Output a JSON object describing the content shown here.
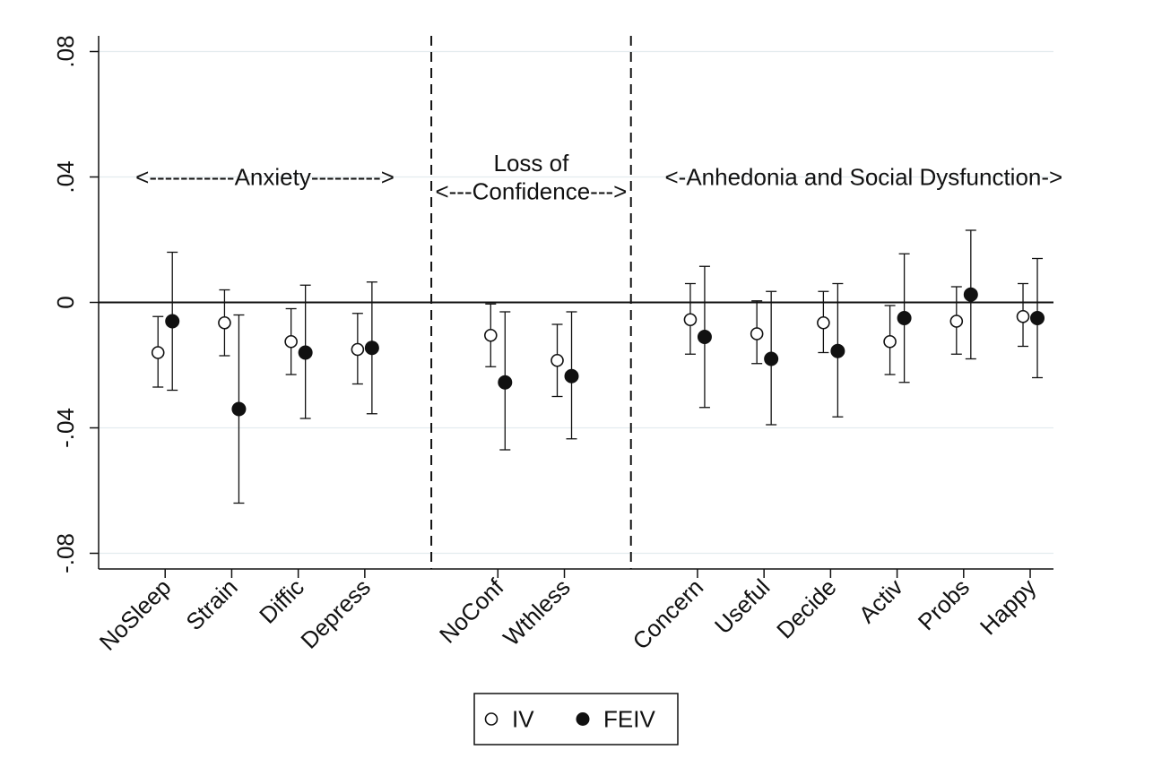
{
  "chart_data": {
    "type": "scatter",
    "title": "",
    "xlabel": "",
    "ylabel": "",
    "ylim": [
      -0.085,
      0.085
    ],
    "y_ticks": [
      {
        "value": 0.08,
        "label": ".08"
      },
      {
        "value": 0.04,
        "label": ".04"
      },
      {
        "value": 0,
        "label": "0"
      },
      {
        "value": -0.04,
        "label": "-.04"
      },
      {
        "value": -0.08,
        "label": "-.08"
      }
    ],
    "categories": [
      "NoSleep",
      "Strain",
      "Diffic",
      "Depress",
      "NoConf",
      "Wthless",
      "Concern",
      "Useful",
      "Decide",
      "Activ",
      "Probs",
      "Happy"
    ],
    "category_positions": [
      1,
      2,
      3,
      4,
      6,
      7,
      9,
      10,
      11,
      12,
      13,
      14
    ],
    "x_range": [
      0.0,
      14.35
    ],
    "separators": [
      5,
      8
    ],
    "reference_line": 0,
    "grid": true,
    "groups": [
      {
        "label": "<-----------Anxiety--------->"
      },
      {
        "label_line1": "Loss of",
        "label_line2": "<---Confidence--->"
      },
      {
        "label": "<-Anhedonia and Social Dysfunction->"
      }
    ],
    "series": [
      {
        "name": "IV",
        "marker": "hollow-circle",
        "values": [
          -0.016,
          -0.0065,
          -0.0125,
          -0.015,
          -0.0105,
          -0.0185,
          -0.0055,
          -0.01,
          -0.0065,
          -0.0125,
          -0.006,
          -0.0045
        ],
        "ci_low": [
          -0.027,
          -0.017,
          -0.023,
          -0.026,
          -0.0205,
          -0.03,
          -0.0165,
          -0.0195,
          -0.016,
          -0.023,
          -0.0165,
          -0.014
        ],
        "ci_high": [
          -0.0045,
          0.004,
          -0.002,
          -0.0035,
          -0.0005,
          -0.007,
          0.006,
          0.0005,
          0.0035,
          -0.001,
          0.005,
          0.006
        ]
      },
      {
        "name": "FEIV",
        "marker": "filled-circle",
        "values": [
          -0.006,
          -0.034,
          -0.016,
          -0.0145,
          -0.0255,
          -0.0235,
          -0.011,
          -0.018,
          -0.0155,
          -0.005,
          0.0025,
          -0.005
        ],
        "ci_low": [
          -0.028,
          -0.064,
          -0.037,
          -0.0355,
          -0.047,
          -0.0435,
          -0.0335,
          -0.039,
          -0.0365,
          -0.0255,
          -0.018,
          -0.024
        ],
        "ci_high": [
          0.016,
          -0.004,
          0.0055,
          0.0065,
          -0.003,
          -0.003,
          0.0115,
          0.0035,
          0.006,
          0.0155,
          0.023,
          0.014
        ]
      }
    ],
    "legend": {
      "placement": "bottom-center",
      "items": [
        {
          "label": "IV",
          "marker": "hollow-circle"
        },
        {
          "label": "FEIV",
          "marker": "filled-circle"
        }
      ]
    },
    "colors": {
      "axis": "#111111",
      "marker": "#111111",
      "grid": "#e4ecef",
      "background": "#ffffff"
    }
  }
}
